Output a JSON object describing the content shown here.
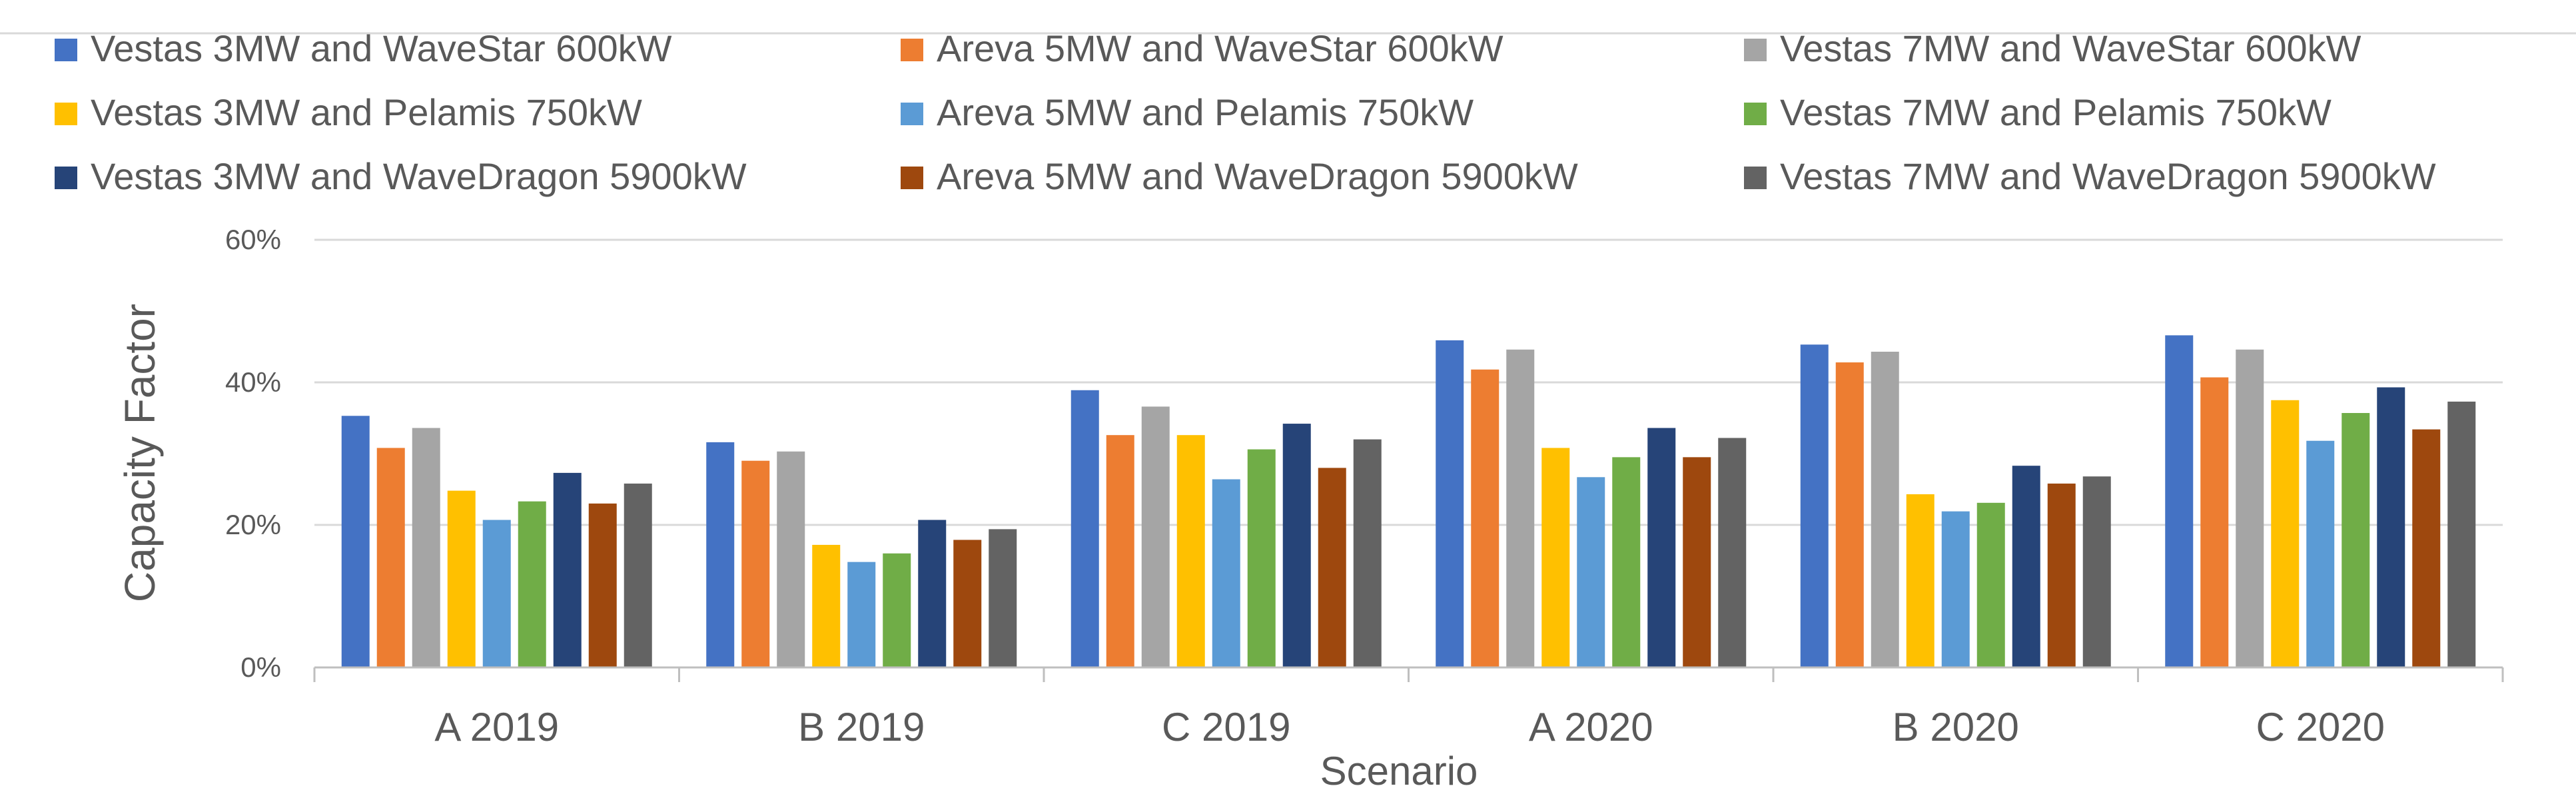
{
  "chart_data": {
    "type": "bar",
    "title": "",
    "xlabel": "Scenario",
    "ylabel": "Capacity Factor",
    "ylim": [
      0,
      60
    ],
    "y_ticks": [
      0,
      20,
      40,
      60
    ],
    "y_tick_labels": [
      "0%",
      "20%",
      "40%",
      "60%"
    ],
    "grid": true,
    "legend_position": "top",
    "categories": [
      "A 2019",
      "B 2019",
      "C 2019",
      "A 2020",
      "B 2020",
      "C 2020"
    ],
    "series": [
      {
        "name": "Vestas 3MW and WaveStar 600kW",
        "color": "#4472C4",
        "values": [
          35.3,
          31.6,
          38.9,
          45.9,
          45.3,
          46.6
        ]
      },
      {
        "name": "Areva 5MW and WaveStar 600kW",
        "color": "#ED7D31",
        "values": [
          30.8,
          29.0,
          32.6,
          41.8,
          42.8,
          40.7
        ]
      },
      {
        "name": "Vestas 7MW and WaveStar 600kW",
        "color": "#A5A5A5",
        "values": [
          33.6,
          30.3,
          36.6,
          44.6,
          44.3,
          44.6
        ]
      },
      {
        "name": "Vestas 3MW and Pelamis 750kW",
        "color": "#FFC000",
        "values": [
          24.8,
          17.2,
          32.6,
          30.8,
          24.3,
          37.5
        ]
      },
      {
        "name": "Areva 5MW and Pelamis 750kW",
        "color": "#5B9BD5",
        "values": [
          20.7,
          14.8,
          26.4,
          26.7,
          21.9,
          31.8
        ]
      },
      {
        "name": "Vestas 7MW and Pelamis 750kW",
        "color": "#70AD47",
        "values": [
          23.3,
          16.0,
          30.6,
          29.5,
          23.1,
          35.7
        ]
      },
      {
        "name": "Vestas 3MW and WaveDragon 5900kW",
        "color": "#264478",
        "values": [
          27.3,
          20.7,
          34.2,
          33.6,
          28.3,
          39.3
        ]
      },
      {
        "name": "Areva 5MW and WaveDragon 5900kW",
        "color": "#9E480E",
        "values": [
          23.0,
          17.9,
          28.0,
          29.5,
          25.8,
          33.4
        ]
      },
      {
        "name": "Vestas 7MW and WaveDragon 5900kW",
        "color": "#636363",
        "values": [
          25.8,
          19.4,
          32.0,
          32.2,
          26.8,
          37.3
        ]
      }
    ]
  }
}
